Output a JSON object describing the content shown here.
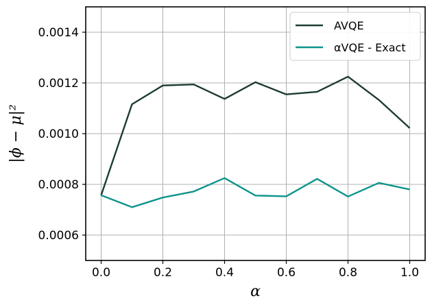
{
  "chart_data": {
    "type": "line",
    "xlabel": "α",
    "ylabel": "|ϕ − μ|²",
    "xlim": [
      -0.05,
      1.05
    ],
    "ylim": [
      0.0005,
      0.0015
    ],
    "xticks": [
      0.0,
      0.2,
      0.4,
      0.6,
      0.8,
      1.0
    ],
    "xtick_labels": [
      "0.0",
      "0.2",
      "0.4",
      "0.6",
      "0.8",
      "1.0"
    ],
    "yticks": [
      0.0006,
      0.0008,
      0.001,
      0.0012,
      0.0014
    ],
    "ytick_labels": [
      "0.0006",
      "0.0008",
      "0.0010",
      "0.0012",
      "0.0014"
    ],
    "grid": true,
    "legend_position": "top-right",
    "x": [
      0.0,
      0.1,
      0.2,
      0.3,
      0.4,
      0.5,
      0.6,
      0.7,
      0.8,
      0.9,
      1.0
    ],
    "series": [
      {
        "name": "AVQE",
        "color": "#1b3b33",
        "values": [
          0.000757,
          0.001116,
          0.00119,
          0.001194,
          0.001137,
          0.001203,
          0.001155,
          0.001165,
          0.001225,
          0.001133,
          0.001022
        ]
      },
      {
        "name": "αVQE - Exact",
        "color": "#0e948c",
        "values": [
          0.000757,
          0.00071,
          0.000748,
          0.000772,
          0.000825,
          0.000756,
          0.000753,
          0.000822,
          0.000752,
          0.000806,
          0.00078
        ]
      }
    ]
  }
}
